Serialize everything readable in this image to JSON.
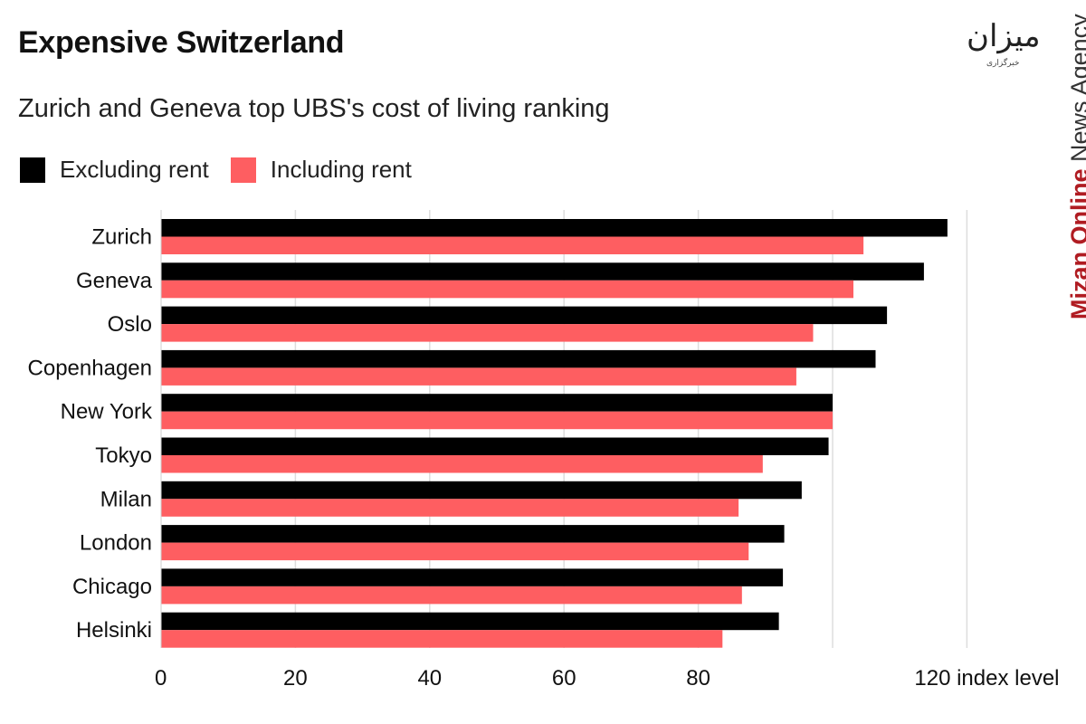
{
  "colors": {
    "excluding": "#000000",
    "including": "#fe5e61",
    "grid": "#dddddd"
  },
  "watermark": {
    "logo": "میزان",
    "logo_sub": "خبرگزاری",
    "bold": "Mizan Online",
    "light": "News Agency"
  },
  "chart_data": {
    "type": "bar",
    "orientation": "horizontal",
    "title": "Expensive Switzerland",
    "subtitle": "Zurich and Geneva top UBS's cost of living ranking",
    "xlabel": "index level",
    "xlim": [
      0,
      120
    ],
    "xticks": [
      "0",
      "20",
      "40",
      "60",
      "80",
      "120 index level"
    ],
    "xtick_values": [
      0,
      20,
      40,
      60,
      80,
      120
    ],
    "grid": true,
    "legend": "top-left",
    "categories": [
      "Zurich",
      "Geneva",
      "Oslo",
      "Copenhagen",
      "New York",
      "Tokyo",
      "Milan",
      "London",
      "Chicago",
      "Helsinki"
    ],
    "series": [
      {
        "name": "Excluding rent",
        "values": [
          117.1,
          113.6,
          108.1,
          106.4,
          100.0,
          99.4,
          95.4,
          92.8,
          92.6,
          92.0
        ]
      },
      {
        "name": "Including rent",
        "values": [
          104.6,
          103.1,
          97.1,
          94.6,
          100.0,
          89.6,
          86.0,
          87.5,
          86.5,
          83.6
        ]
      }
    ]
  }
}
